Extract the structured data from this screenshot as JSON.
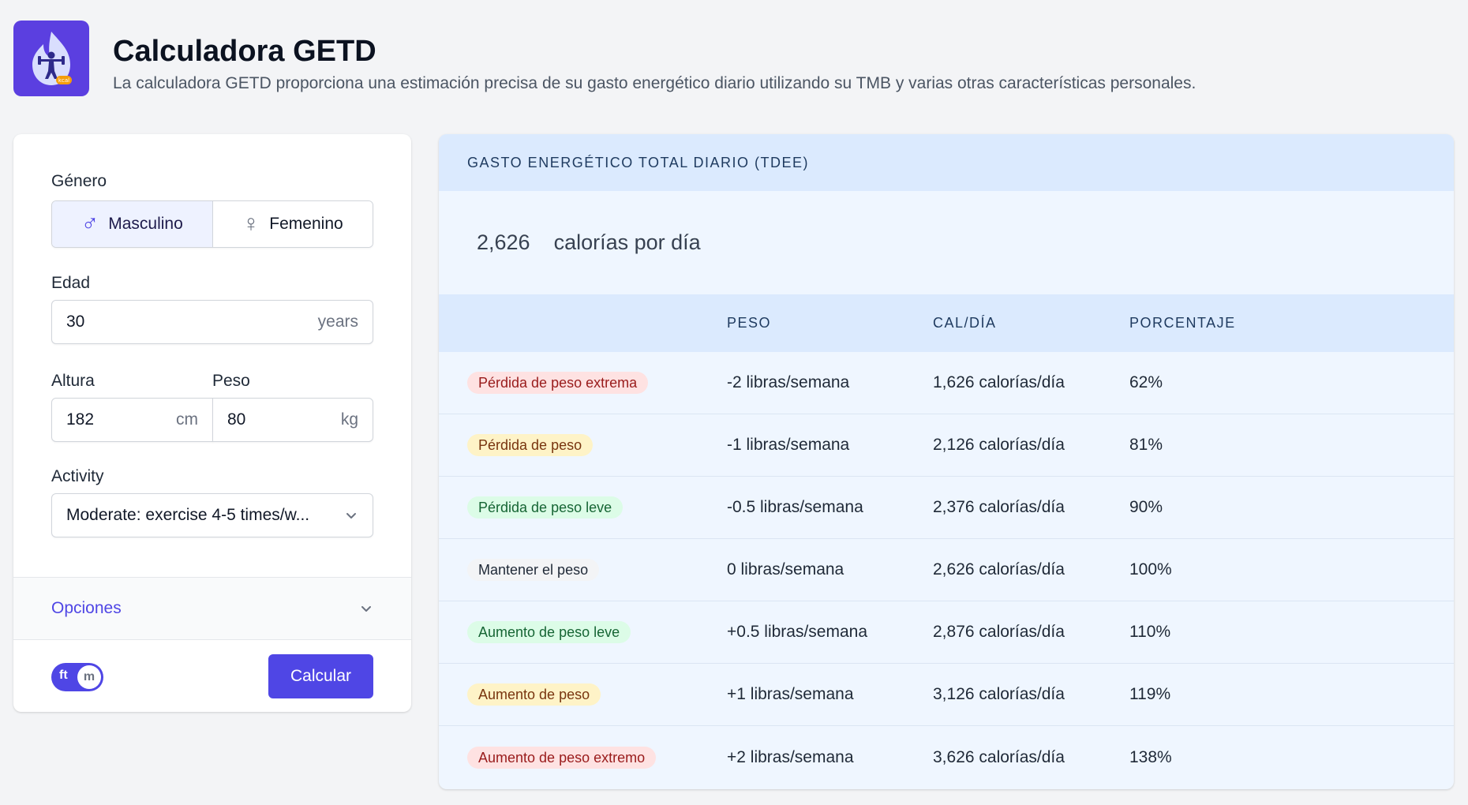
{
  "header": {
    "title": "Calculadora GETD",
    "subtitle": "La calculadora GETD proporciona una estimación precisa de su gasto energético diario utilizando su TMB y varias otras características personales.",
    "logo_icon": "flame-weightlifter-icon",
    "logo_badge": "kcal"
  },
  "form": {
    "gender_label": "Género",
    "gender_options": [
      "Masculino",
      "Femenino"
    ],
    "gender_selected": "Masculino",
    "age_label": "Edad",
    "age_value": "30",
    "age_unit": "years",
    "height_label": "Altura",
    "height_value": "182",
    "height_unit": "cm",
    "weight_label": "Peso",
    "weight_value": "80",
    "weight_unit": "kg",
    "activity_label": "Activity",
    "activity_value": "Moderate: exercise 4-5 times/w...",
    "options_label": "Opciones",
    "unit_toggle_left": "ft",
    "unit_toggle_right": "m",
    "calculate_label": "Calcular"
  },
  "results": {
    "header": "GASTO ENERGÉTICO TOTAL DIARIO (TDEE)",
    "tdee_value": "2,626",
    "tdee_unit": "calorías por día",
    "columns": [
      "",
      "PESO",
      "CAL/DÍA",
      "PORCENTAJE"
    ],
    "rows": [
      {
        "goal": "Pérdida de peso extrema",
        "weight": "-2 libras/semana",
        "cal": "1,626 calorías/día",
        "pct": "62%"
      },
      {
        "goal": "Pérdida de peso",
        "weight": "-1 libras/semana",
        "cal": "2,126 calorías/día",
        "pct": "81%"
      },
      {
        "goal": "Pérdida de peso leve",
        "weight": "-0.5 libras/semana",
        "cal": "2,376 calorías/día",
        "pct": "90%"
      },
      {
        "goal": "Mantener el peso",
        "weight": "0 libras/semana",
        "cal": "2,626 calorías/día",
        "pct": "100%"
      },
      {
        "goal": "Aumento de peso leve",
        "weight": "+0.5 libras/semana",
        "cal": "2,876 calorías/día",
        "pct": "110%"
      },
      {
        "goal": "Aumento de peso",
        "weight": "+1 libras/semana",
        "cal": "3,126 calorías/día",
        "pct": "119%"
      },
      {
        "goal": "Aumento de peso extremo",
        "weight": "+2 libras/semana",
        "cal": "3,626 calorías/día",
        "pct": "138%"
      }
    ]
  },
  "colors": {
    "accent": "#4f46e5",
    "badge_red": "#fee2e2",
    "badge_yellow": "#fef3c7",
    "badge_green": "#dcfce7",
    "badge_gray": "#f3f4f6"
  }
}
